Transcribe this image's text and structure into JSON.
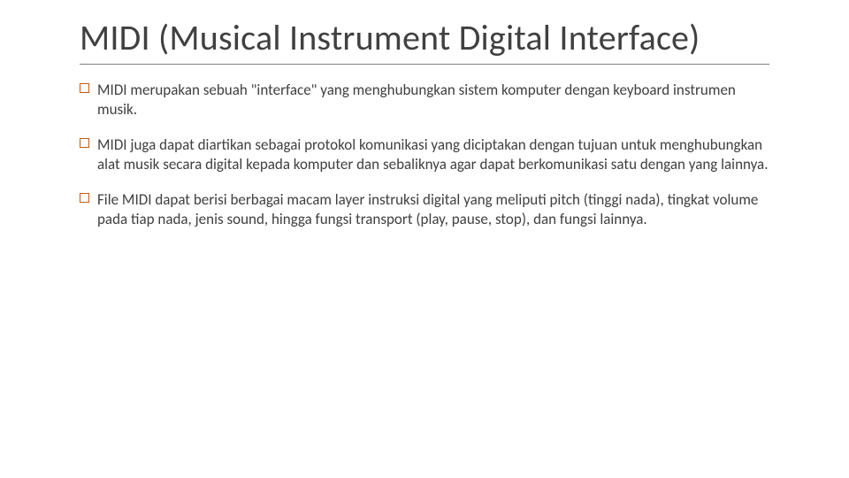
{
  "slide": {
    "title": "MIDI (Musical Instrument Digital Interface)",
    "bullets": [
      "MIDI merupakan sebuah \"interface\" yang menghubungkan sistem komputer dengan keyboard instrumen musik.",
      "MIDI juga dapat diartikan sebagai protokol komunikasi yang diciptakan dengan tujuan untuk menghubungkan alat musik secara digital kepada komputer dan sebaliknya agar dapat berkomunikasi satu dengan yang lainnya.",
      "File MIDI dapat berisi berbagai macam layer instruksi digital yang meliputi pitch (tinggi nada), tingkat volume pada tiap nada, jenis sound, hingga fungsi transport (play, pause, stop), dan fungsi lainnya."
    ],
    "colors": {
      "text": "#404040",
      "bullet_border": "#c55a11",
      "rule": "#808080",
      "background": "#ffffff"
    },
    "typography": {
      "title_fontsize": 40,
      "title_weight": 300,
      "body_fontsize": 17
    }
  }
}
